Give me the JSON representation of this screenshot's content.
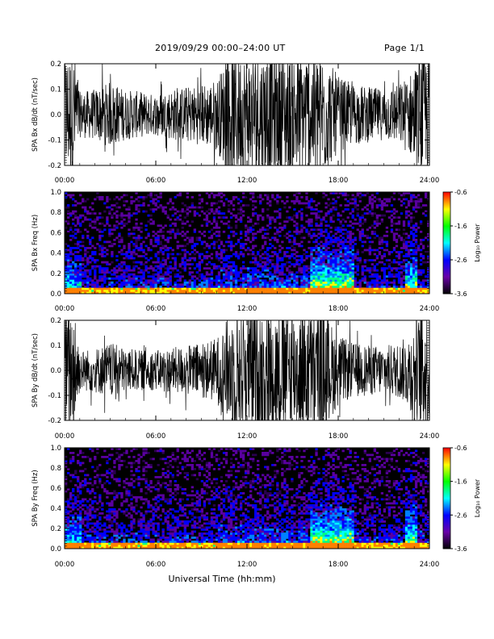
{
  "header": {
    "title": "2019/09/29   00:00–24:00 UT",
    "page": "Page 1/1"
  },
  "colorbar": {
    "label": "Log₁₀ Power",
    "ticks": [
      "-0.6",
      "-1.6",
      "-2.6",
      "-3.6"
    ],
    "colors": [
      "#ff0000",
      "#ffff00",
      "#00ff00",
      "#00ffff",
      "#0000ff",
      "#6a00a8",
      "#000000"
    ]
  },
  "chart_data": [
    {
      "type": "line",
      "panel": "bx-timeseries",
      "ylabel": "SPA Bx dB/dt (nT/sec)",
      "xlim": [
        "00:00",
        "24:00"
      ],
      "ylim": [
        -0.2,
        0.2
      ],
      "xticks": [
        "00:00",
        "06:00",
        "12:00",
        "18:00",
        "24:00"
      ],
      "yticks": [
        "-0.2",
        "-0.1",
        "0.0",
        "0.1",
        "0.2"
      ],
      "color": "#000000",
      "amplitude_hours": [
        0,
        0.7,
        1,
        2,
        3,
        4,
        5,
        6,
        7,
        8,
        9,
        10,
        10.5,
        11,
        12,
        13,
        14,
        15,
        16,
        17,
        18,
        19,
        20,
        21,
        22,
        22.5,
        23,
        23.5,
        24
      ],
      "amplitude_nT_s": [
        0.25,
        0.25,
        0.09,
        0.1,
        0.13,
        0.1,
        0.09,
        0.08,
        0.1,
        0.11,
        0.12,
        0.14,
        0.2,
        0.25,
        0.25,
        0.25,
        0.25,
        0.25,
        0.25,
        0.25,
        0.15,
        0.12,
        0.11,
        0.1,
        0.12,
        0.15,
        0.18,
        0.25,
        0.25
      ]
    },
    {
      "type": "heatmap",
      "panel": "bx-spectrogram",
      "ylabel": "SPA Bx Freq (Hz)",
      "xlim": [
        "00:00",
        "24:00"
      ],
      "ylim": [
        0.0,
        1.0
      ],
      "xticks": [
        "00:00",
        "06:00",
        "12:00",
        "18:00",
        "24:00"
      ],
      "yticks": [
        "0.0",
        "0.2",
        "0.4",
        "0.6",
        "0.8",
        "1.0"
      ],
      "clim": [
        -3.6,
        -0.6
      ]
    },
    {
      "type": "line",
      "panel": "by-timeseries",
      "ylabel": "SPA By dB/dt (nT/sec)",
      "xlim": [
        "00:00",
        "24:00"
      ],
      "ylim": [
        -0.2,
        0.2
      ],
      "xticks": [
        "00:00",
        "06:00",
        "12:00",
        "18:00",
        "24:00"
      ],
      "yticks": [
        "-0.2",
        "-0.1",
        "0.0",
        "0.1",
        "0.2"
      ],
      "color": "#000000",
      "amplitude_hours": [
        0,
        0.7,
        1,
        2,
        3,
        4,
        5,
        6,
        7,
        8,
        9,
        10,
        10.5,
        11,
        12,
        13,
        14,
        15,
        16,
        17,
        18,
        19,
        20,
        21,
        22,
        22.5,
        23,
        23.5,
        24
      ],
      "amplitude_nT_s": [
        0.25,
        0.25,
        0.08,
        0.09,
        0.11,
        0.09,
        0.08,
        0.08,
        0.09,
        0.1,
        0.11,
        0.13,
        0.18,
        0.25,
        0.25,
        0.25,
        0.25,
        0.25,
        0.25,
        0.25,
        0.14,
        0.11,
        0.1,
        0.1,
        0.11,
        0.14,
        0.17,
        0.25,
        0.25
      ]
    },
    {
      "type": "heatmap",
      "panel": "by-spectrogram",
      "ylabel": "SPA By Freq (Hz)",
      "xlim": [
        "00:00",
        "24:00"
      ],
      "ylim": [
        0.0,
        1.0
      ],
      "xticks": [
        "00:00",
        "06:00",
        "12:00",
        "18:00",
        "24:00"
      ],
      "yticks": [
        "0.0",
        "0.2",
        "0.4",
        "0.6",
        "0.8",
        "1.0"
      ],
      "clim": [
        -3.6,
        -0.6
      ]
    }
  ],
  "xlabel": "Universal Time (hh:mm)"
}
